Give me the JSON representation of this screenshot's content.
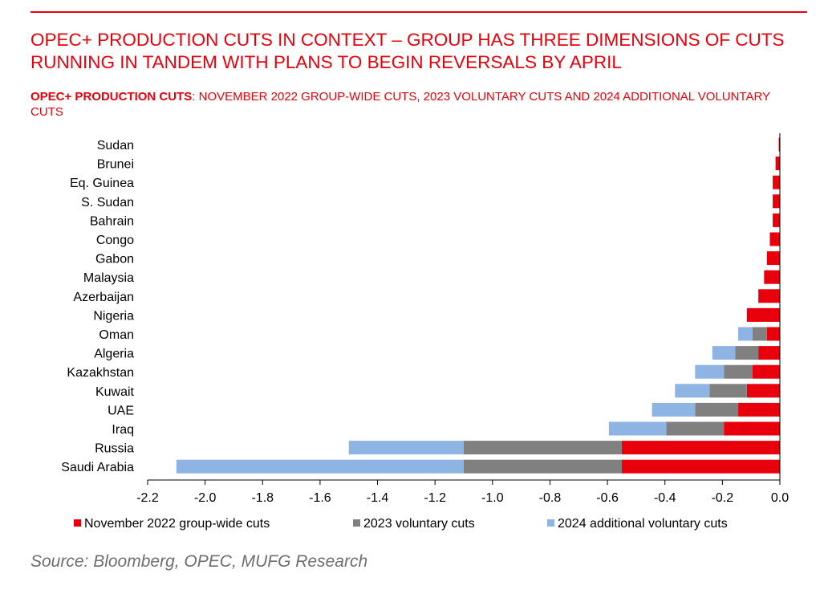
{
  "header": {
    "title": "OPEC+ PRODUCTION CUTS IN CONTEXT –  GROUP HAS THREE DIMENSIONS OF CUTS RUNNING IN TANDEM WITH PLANS TO BEGIN REVERSALS BY APRIL",
    "subtitle_bold": "OPEC+ PRODUCTION CUTS",
    "subtitle_rest": ": NOVEMBER 2022 GROUP-WIDE CUTS, 2023 VOLUNTARY CUTS AND 2024 ADDITIONAL VOLUNTARY CUTS"
  },
  "footer": {
    "source": "Source: Bloomberg, OPEC, MUFG Research"
  },
  "colors": {
    "accent": "#e8000d",
    "nov2022": "#e8000d",
    "v2023": "#808080",
    "v2024": "#8db4e2"
  },
  "chart_data": {
    "type": "bar",
    "orientation": "horizontal",
    "stacked": true,
    "categories": [
      "Sudan",
      "Brunei",
      "Eq. Guinea",
      "S. Sudan",
      "Bahrain",
      "Congo",
      "Gabon",
      "Malaysia",
      "Azerbaijan",
      "Nigeria",
      "Oman",
      "Algeria",
      "Kazakhstan",
      "Kuwait",
      "UAE",
      "Iraq",
      "Russia",
      "Saudi Arabia"
    ],
    "series": [
      {
        "name": "November 2022 group-wide cuts",
        "color": "#e8000d",
        "values": [
          -0.004,
          -0.015,
          -0.025,
          -0.025,
          -0.025,
          -0.035,
          -0.045,
          -0.055,
          -0.075,
          -0.115,
          -0.045,
          -0.075,
          -0.095,
          -0.115,
          -0.145,
          -0.195,
          -0.55,
          -0.55
        ]
      },
      {
        "name": "2023 voluntary cuts",
        "color": "#808080",
        "values": [
          0,
          0,
          0,
          0,
          0,
          0,
          0,
          0,
          0,
          0,
          -0.05,
          -0.08,
          -0.1,
          -0.13,
          -0.15,
          -0.2,
          -0.55,
          -0.55
        ]
      },
      {
        "name": "2024 additional voluntary cuts",
        "color": "#8db4e2",
        "values": [
          0,
          0,
          0,
          0,
          0,
          0,
          0,
          0,
          0,
          0,
          -0.05,
          -0.08,
          -0.1,
          -0.12,
          -0.15,
          -0.2,
          -0.4,
          -1.0
        ]
      }
    ],
    "xlim": [
      -2.2,
      0.0
    ],
    "x_ticks": [
      -2.2,
      -2.0,
      -1.8,
      -1.6,
      -1.4,
      -1.2,
      -1.0,
      -0.8,
      -0.6,
      -0.4,
      -0.2,
      0.0
    ],
    "x_tick_labels": [
      "-2.2",
      "-2.0",
      "-1.8",
      "-1.6",
      "-1.4",
      "-1.2",
      "-1.0",
      "-0.8",
      "-0.6",
      "-0.4",
      "-0.2",
      "0.0"
    ],
    "grid": false,
    "legend_position": "bottom"
  }
}
